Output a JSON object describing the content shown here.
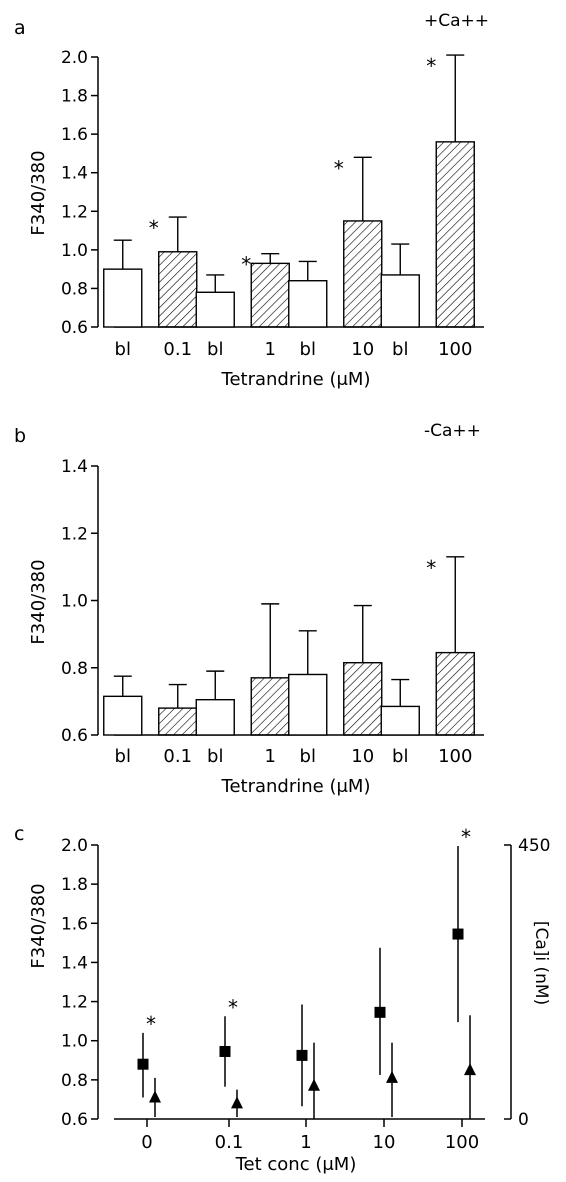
{
  "chart_data": [
    {
      "panel_label": "a",
      "type": "bar",
      "condition_label": "+Ca++",
      "xlabel": "Tetrandrine (μM)",
      "ylabel": "F340/380",
      "ylim": [
        0.6,
        2.0
      ],
      "yticks": [
        "0.6",
        "0.8",
        "1.0",
        "1.2",
        "1.4",
        "1.6",
        "1.8",
        "2.0"
      ],
      "categories": [
        "bl",
        "0.1",
        "bl",
        "1",
        "bl",
        "10",
        "bl",
        "100"
      ],
      "series": [
        {
          "style": "open",
          "values": [
            0.9,
            null,
            0.78,
            null,
            0.84,
            null,
            0.87,
            null
          ],
          "error": [
            0.15,
            null,
            0.09,
            null,
            0.1,
            null,
            0.16,
            null
          ]
        },
        {
          "style": "hatched",
          "values": [
            null,
            0.99,
            null,
            0.93,
            null,
            1.15,
            null,
            1.56
          ],
          "error": [
            null,
            0.18,
            null,
            0.05,
            null,
            0.33,
            null,
            0.45
          ]
        }
      ],
      "significance": [
        {
          "category_index": 1,
          "symbol": "*"
        },
        {
          "category_index": 3,
          "symbol": "*"
        },
        {
          "category_index": 5,
          "symbol": "*"
        },
        {
          "category_index": 7,
          "symbol": "*"
        }
      ]
    },
    {
      "panel_label": "b",
      "type": "bar",
      "condition_label": "-Ca++",
      "xlabel": "Tetrandrine (μM)",
      "ylabel": "F340/380",
      "ylim": [
        0.6,
        1.4
      ],
      "yticks": [
        "0.6",
        "0.8",
        "1.0",
        "1.2",
        "1.4"
      ],
      "categories": [
        "bl",
        "0.1",
        "bl",
        "1",
        "bl",
        "10",
        "bl",
        "100"
      ],
      "series": [
        {
          "style": "open",
          "values": [
            0.715,
            null,
            0.705,
            null,
            0.78,
            null,
            0.685,
            null
          ],
          "error": [
            0.06,
            null,
            0.085,
            null,
            0.13,
            null,
            0.08,
            null
          ]
        },
        {
          "style": "hatched",
          "values": [
            null,
            0.68,
            null,
            0.77,
            null,
            0.815,
            null,
            0.845
          ],
          "error": [
            null,
            0.07,
            null,
            0.22,
            null,
            0.17,
            null,
            0.285
          ]
        }
      ],
      "significance": [
        {
          "category_index": 7,
          "symbol": "*"
        }
      ]
    },
    {
      "panel_label": "c",
      "type": "scatter",
      "xlabel": "Tet conc (μM)",
      "ylabel": "F340/380",
      "y2label": "[Ca]i (nM)",
      "ylim": [
        0.6,
        2.0
      ],
      "yticks": [
        "0.6",
        "0.8",
        "1.0",
        "1.2",
        "1.4",
        "1.6",
        "1.8",
        "2.0"
      ],
      "y2lim": [
        0,
        450
      ],
      "y2ticks": [
        "0",
        "450"
      ],
      "categories": [
        "0",
        "0.1",
        "1",
        "10",
        "100"
      ],
      "series": [
        {
          "marker": "square",
          "axis": "left",
          "values": [
            0.88,
            0.945,
            0.925,
            1.145,
            1.545
          ],
          "err_low": [
            0.17,
            0.18,
            0.26,
            0.32,
            0.45
          ],
          "err_high": [
            0.16,
            0.18,
            0.26,
            0.33,
            0.45
          ]
        },
        {
          "marker": "triangle",
          "axis": "left",
          "values": [
            0.71,
            0.68,
            0.77,
            0.81,
            0.85
          ],
          "err_low": [
            0.1,
            0.07,
            0.2,
            0.2,
            0.25
          ],
          "err_high": [
            0.1,
            0.07,
            0.22,
            0.18,
            0.28
          ]
        }
      ],
      "significance": [
        {
          "category_index": 0,
          "symbol": "*"
        },
        {
          "category_index": 1,
          "symbol": "*"
        },
        {
          "category_index": 4,
          "symbol": "*"
        }
      ]
    }
  ]
}
